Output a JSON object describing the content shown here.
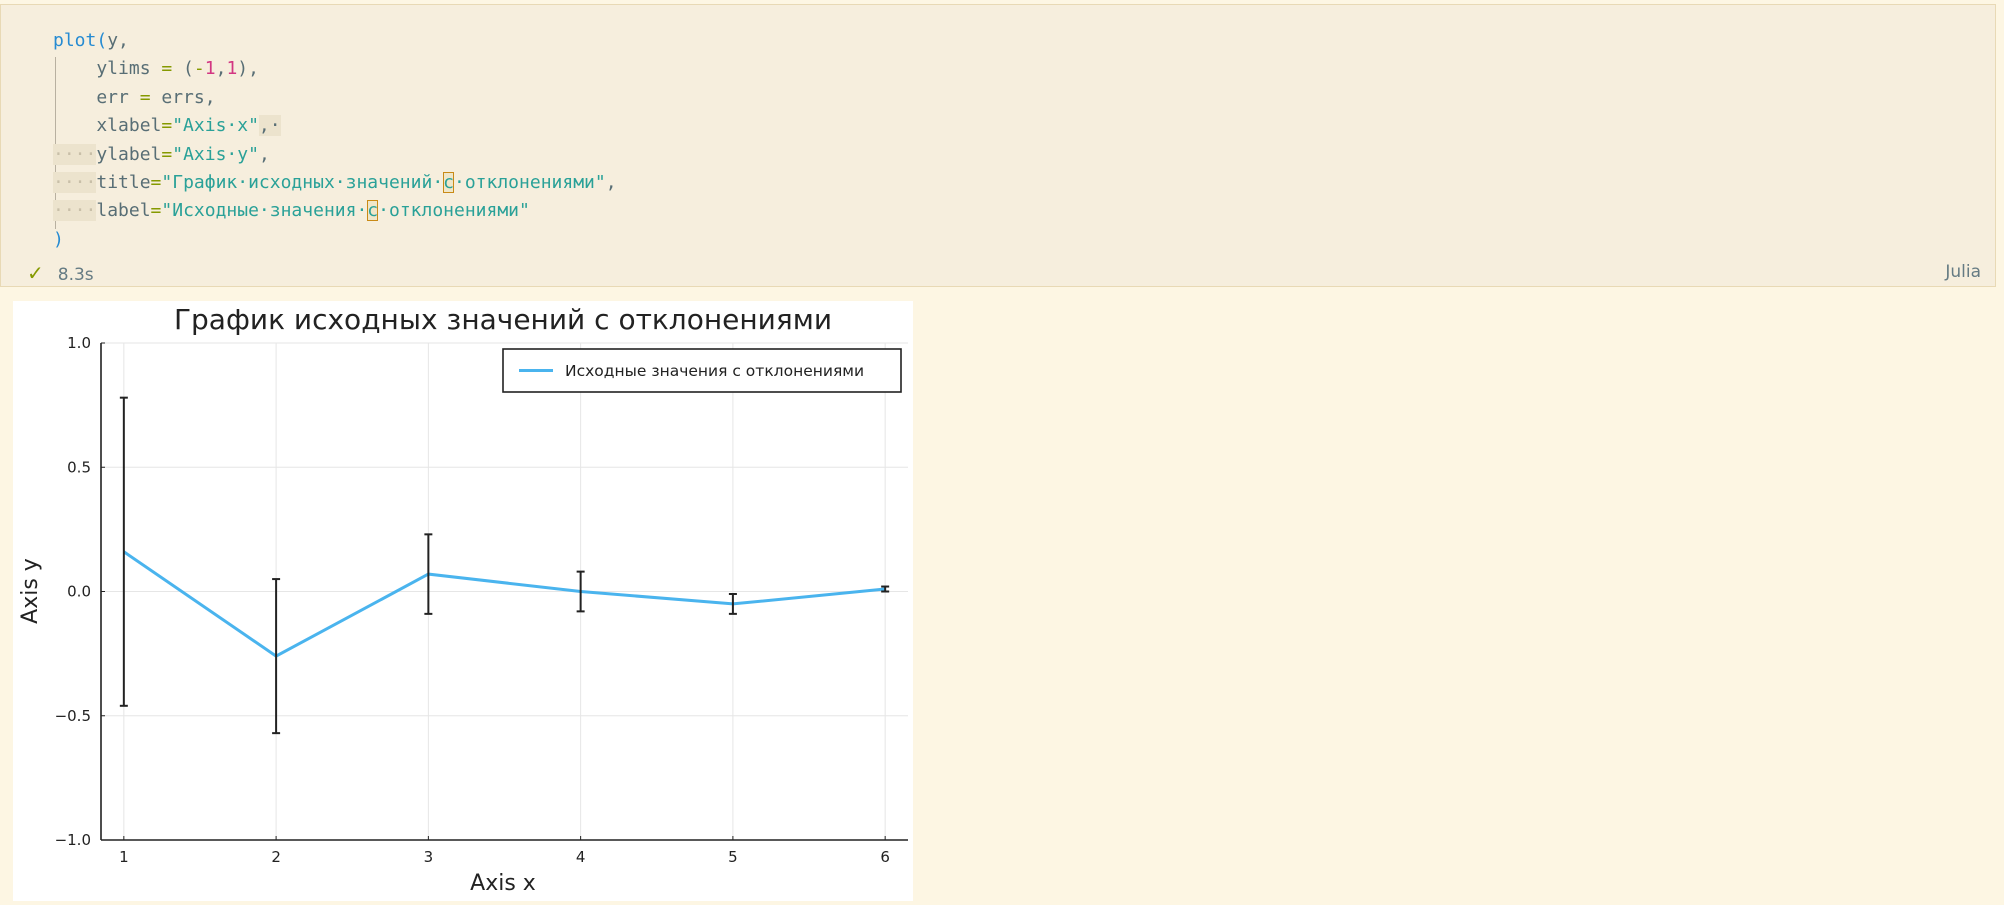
{
  "code_cell": {
    "lines": [
      [
        {
          "t": "plot",
          "c": "fn"
        },
        {
          "t": "(",
          "c": "paren"
        },
        {
          "t": "y,",
          "c": "plain"
        }
      ],
      [
        {
          "t": "    ylims ",
          "c": "plain"
        },
        {
          "t": "=",
          "c": "op"
        },
        {
          "t": " (",
          "c": "plain"
        },
        {
          "t": "-",
          "c": "op"
        },
        {
          "t": "1",
          "c": "num"
        },
        {
          "t": ",",
          "c": "plain"
        },
        {
          "t": "1",
          "c": "num"
        },
        {
          "t": "),",
          "c": "plain"
        }
      ],
      [
        {
          "t": "    err ",
          "c": "plain"
        },
        {
          "t": "=",
          "c": "op"
        },
        {
          "t": " errs,",
          "c": "plain"
        }
      ],
      [
        {
          "t": "    xlabel",
          "c": "plain"
        },
        {
          "t": "=",
          "c": "op"
        },
        {
          "t": "\"Axis·x\"",
          "c": "str"
        },
        {
          "t": ",·",
          "c": "plain-hl"
        }
      ],
      [
        {
          "t": "····",
          "c": "ws"
        },
        {
          "t": "ylabel",
          "c": "plain"
        },
        {
          "t": "=",
          "c": "op"
        },
        {
          "t": "\"Axis·y\"",
          "c": "str"
        },
        {
          "t": ",",
          "c": "plain"
        }
      ],
      [
        {
          "t": "····",
          "c": "ws"
        },
        {
          "t": "title",
          "c": "plain"
        },
        {
          "t": "=",
          "c": "op"
        },
        {
          "t": "\"График·исходных·значений·",
          "c": "str"
        },
        {
          "t": "с",
          "c": "str-box"
        },
        {
          "t": "·отклонениями\"",
          "c": "str"
        },
        {
          "t": ",",
          "c": "plain"
        }
      ],
      [
        {
          "t": "····",
          "c": "ws"
        },
        {
          "t": "label",
          "c": "plain"
        },
        {
          "t": "=",
          "c": "op"
        },
        {
          "t": "\"Исходные·значения·",
          "c": "str"
        },
        {
          "t": "с",
          "c": "str-box"
        },
        {
          "t": "·отклонениями\"",
          "c": "str"
        }
      ],
      [
        {
          "t": ")",
          "c": "paren"
        }
      ]
    ],
    "status_time": "8.3s",
    "language": "Julia",
    "icons": {
      "status": "checkmark-icon"
    }
  },
  "chart_data": {
    "type": "line",
    "title": "График исходных значений с отклонениями",
    "xlabel": "Axis x",
    "ylabel": "Axis y",
    "xlim": [
      0.85,
      6.15
    ],
    "ylim": [
      -1,
      1
    ],
    "x_ticks": [
      1,
      2,
      3,
      4,
      5,
      6
    ],
    "x_tick_labels": [
      "1",
      "2",
      "3",
      "4",
      "5",
      "6"
    ],
    "y_ticks": [
      -1.0,
      -0.5,
      0.0,
      0.5,
      1.0
    ],
    "y_tick_labels": [
      "−1.0",
      "−0.5",
      "0.0",
      "0.5",
      "1.0"
    ],
    "grid": true,
    "legend_position": "top-right",
    "series": [
      {
        "name": "Исходные значения с отклонениями",
        "color": "#4ab4ee",
        "x": [
          1,
          2,
          3,
          4,
          5,
          6
        ],
        "y": [
          0.16,
          -0.26,
          0.07,
          0.0,
          -0.05,
          0.01
        ],
        "err": [
          0.62,
          0.31,
          0.16,
          0.08,
          0.04,
          0.01
        ]
      }
    ],
    "errorbar_color": "#222222"
  }
}
